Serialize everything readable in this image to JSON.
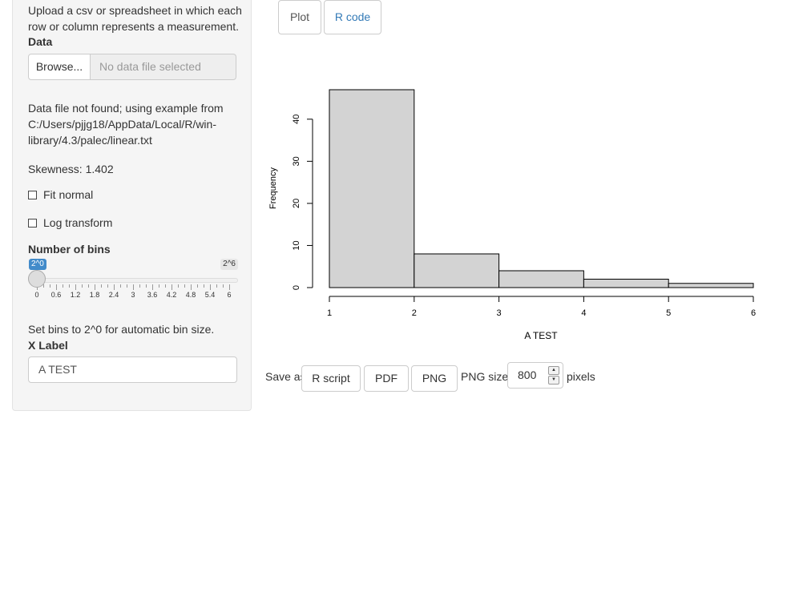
{
  "sidebar": {
    "intro": "Upload a csv or spreadsheet in which each row or column represents a measurement.",
    "data_label": "Data",
    "browse_label": "Browse...",
    "file_placeholder": "No data file selected",
    "notice": "Data file not found; using example from C:/Users/pjjg18/AppData/Local/R/win-library/4.3/palec/linear.txt",
    "skewness": "Skewness: 1.402",
    "fit_normal_label": "Fit normal",
    "fit_normal_checked": false,
    "log_transform_label": "Log transform",
    "log_transform_checked": false,
    "bins_label": "Number of bins",
    "slider": {
      "value_label": "2^0",
      "max_label": "2^6",
      "value": 0,
      "min": 0,
      "max": 6,
      "tick_labels": [
        "0",
        "0.6",
        "1.2",
        "1.8",
        "2.4",
        "3",
        "3.6",
        "4.2",
        "4.8",
        "5.4",
        "6"
      ]
    },
    "help": "Set bins to 2^0 for automatic bin size.",
    "xlabel_label": "X Label",
    "xlabel_value": "A TEST"
  },
  "tabs": [
    {
      "label": "Plot",
      "active": true
    },
    {
      "label": "R code",
      "active": false
    }
  ],
  "save": {
    "label": "Save as:",
    "buttons": [
      "R script",
      "PDF",
      "PNG"
    ],
    "png_size_label": "PNG size:",
    "png_size_value": "800",
    "pixels_label": "pixels"
  },
  "colors": {
    "bar_fill": "#d3d3d3",
    "link_blue": "#337ab7",
    "slider_badge": "#428bca"
  },
  "chart_data": {
    "type": "bar",
    "bins": [
      [
        1,
        2
      ],
      [
        2,
        3
      ],
      [
        3,
        4
      ],
      [
        4,
        5
      ],
      [
        5,
        6
      ]
    ],
    "values": [
      47,
      8,
      4,
      2,
      1
    ],
    "xlabel": "A TEST",
    "ylabel": "Frequency",
    "x_ticks": [
      1,
      2,
      3,
      4,
      5,
      6
    ],
    "y_ticks": [
      0,
      10,
      20,
      30,
      40
    ],
    "xlim": [
      1,
      6
    ],
    "ylim": [
      0,
      47
    ],
    "grid": false
  }
}
